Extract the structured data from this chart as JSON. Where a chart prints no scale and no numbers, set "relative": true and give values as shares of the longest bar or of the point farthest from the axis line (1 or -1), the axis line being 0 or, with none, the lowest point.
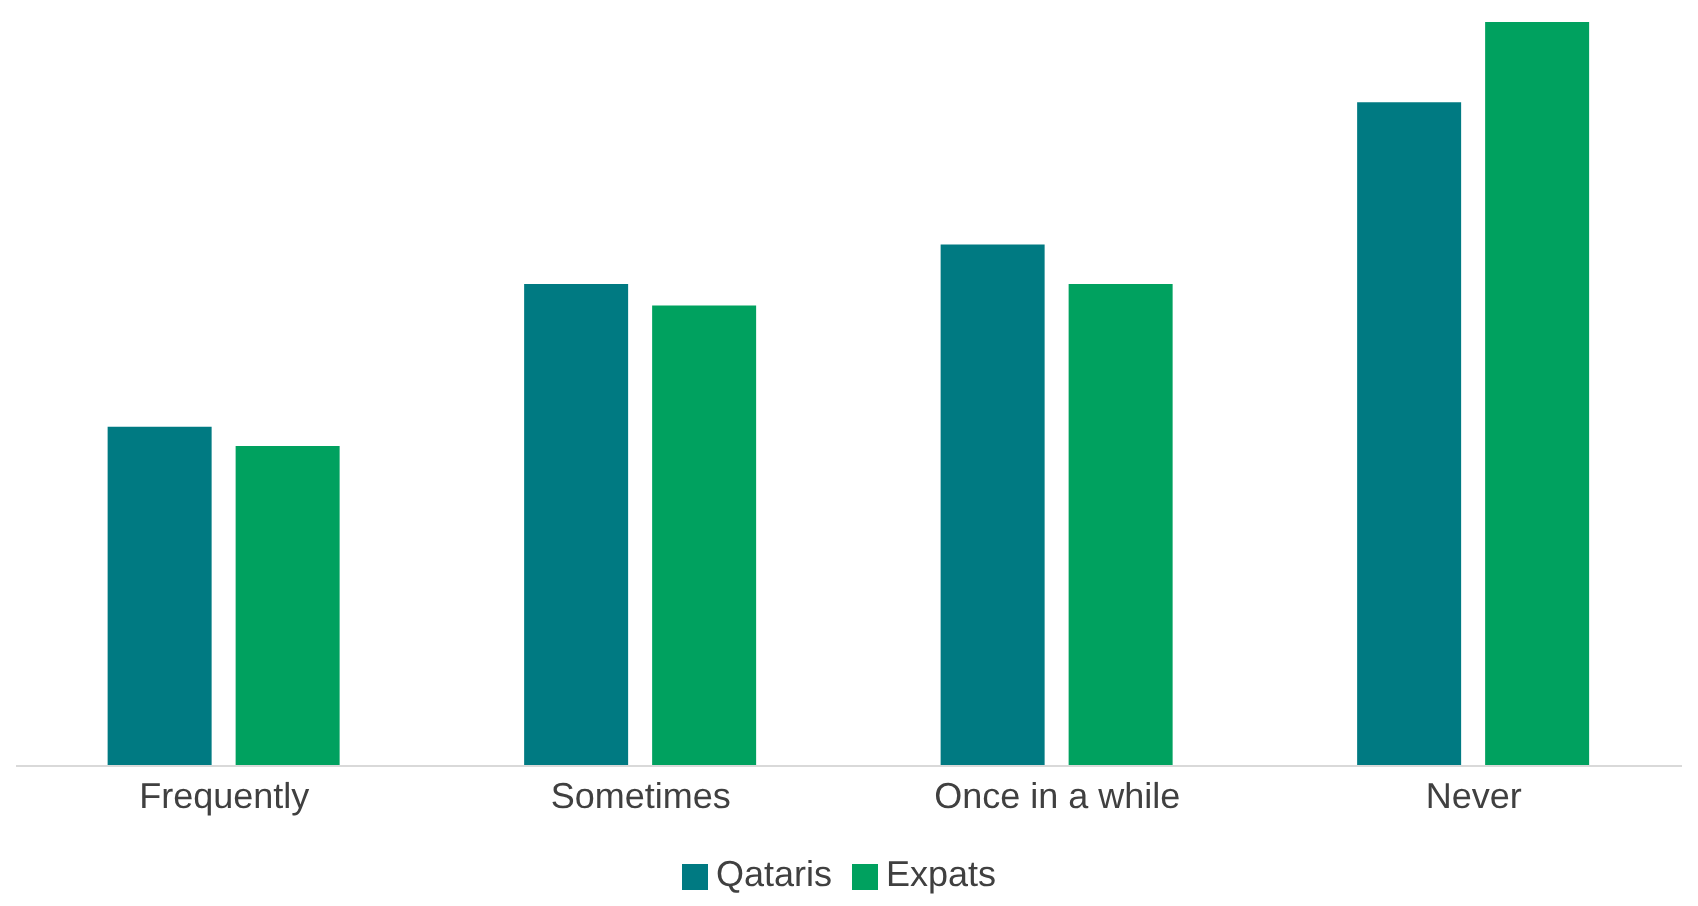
{
  "chart_data": {
    "type": "bar",
    "relative": true,
    "categories": [
      "Frequently",
      "Sometimes",
      "Once in a while",
      "Never"
    ],
    "series": [
      {
        "name": "Qataris",
        "color": "#007a82",
        "values": [
          0.456,
          0.648,
          0.701,
          0.892
        ]
      },
      {
        "name": "Expats",
        "color": "#00a15f",
        "values": [
          0.43,
          0.619,
          0.648,
          1
        ]
      }
    ],
    "legend": "bottom",
    "grid": false
  }
}
